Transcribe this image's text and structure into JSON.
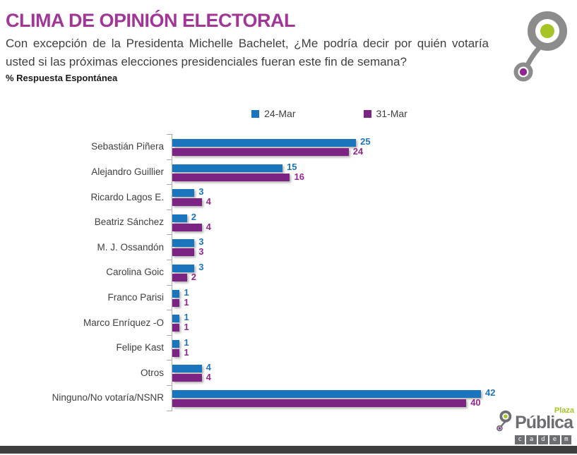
{
  "header": {
    "title": "CLIMA DE OPINIÓN ELECTORAL",
    "question": "Con excepción de la Presidenta Michelle Bachelet, ¿Me podría decir por quién votaría usted si las próximas elecciones presidenciales fueran este fin de semana?",
    "note": "% Respuesta Espontánea"
  },
  "chart_data": {
    "type": "bar",
    "orientation": "horizontal",
    "title": "CLIMA DE OPINIÓN ELECTORAL",
    "subtitle": "% Respuesta Espontánea",
    "categories": [
      "Sebastián Piñera",
      "Alejandro Guillier",
      "Ricardo Lagos E.",
      "Beatriz Sánchez",
      "M. J. Ossandón",
      "Carolina Goic",
      "Franco Parisi",
      "Marco Enríquez -O",
      "Felipe Kast",
      "Otros",
      "Ninguno/No votaría/NSNR"
    ],
    "series": [
      {
        "name": "24-Mar",
        "color": "#1B75BC",
        "label_color": "#1B75BC",
        "values": [
          25,
          15,
          3,
          2,
          3,
          3,
          1,
          1,
          1,
          4,
          42
        ]
      },
      {
        "name": "31-Mar",
        "color": "#7C2483",
        "label_color": "#92278F",
        "values": [
          24,
          16,
          4,
          4,
          3,
          2,
          1,
          1,
          1,
          4,
          40
        ]
      }
    ],
    "xlim": [
      0,
      42
    ],
    "value_labels": true,
    "grid": false,
    "legend_position": "top-center"
  },
  "branding": {
    "plaza": "Plaza",
    "publica": "Pública",
    "cadem": "cadem",
    "colors": {
      "green": "#A4C523",
      "purple": "#92278F",
      "gray": "#8C8C8C",
      "text_gray": "#6D6E71"
    }
  }
}
